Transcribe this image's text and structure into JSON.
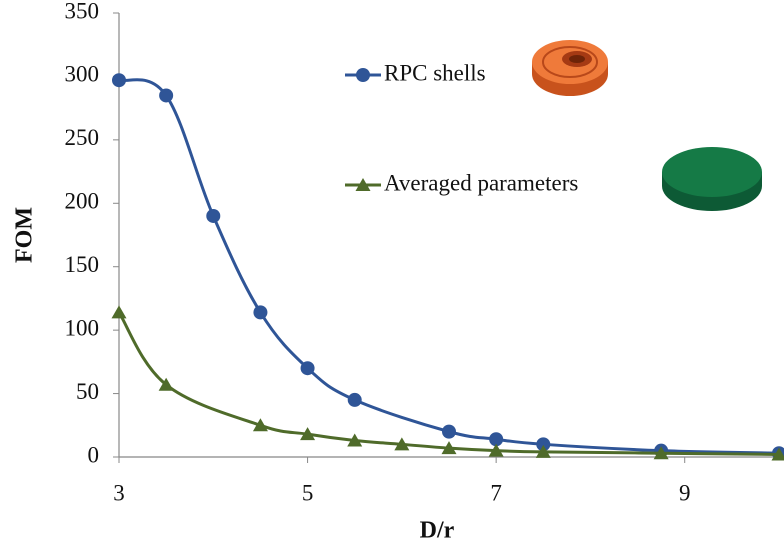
{
  "chart_data": {
    "type": "line",
    "x_label": "D/r",
    "y_label": "FOM",
    "xlim": [
      3,
      10
    ],
    "xticks": [
      3,
      5,
      7,
      9
    ],
    "ylim": [
      0,
      350
    ],
    "yticks": [
      0,
      50,
      100,
      150,
      200,
      250,
      300,
      350
    ],
    "series": [
      {
        "name": "RPC shells",
        "color": "#2f5597",
        "marker": "circle",
        "x": [
          3,
          3.5,
          4,
          4.5,
          5,
          5.5,
          6.5,
          7,
          7.5,
          8.75,
          10
        ],
        "values": [
          297,
          285,
          190,
          114,
          70,
          45,
          20,
          14,
          10,
          5,
          3
        ]
      },
      {
        "name": "Averaged parameters",
        "color": "#4f6b2a",
        "marker": "triangle",
        "x": [
          3,
          3.5,
          4.5,
          5,
          5.5,
          6,
          6.5,
          7,
          7.5,
          8.75,
          10
        ],
        "values": [
          114,
          57,
          25,
          18,
          13,
          10,
          7,
          5,
          4,
          3,
          2
        ]
      }
    ]
  }
}
